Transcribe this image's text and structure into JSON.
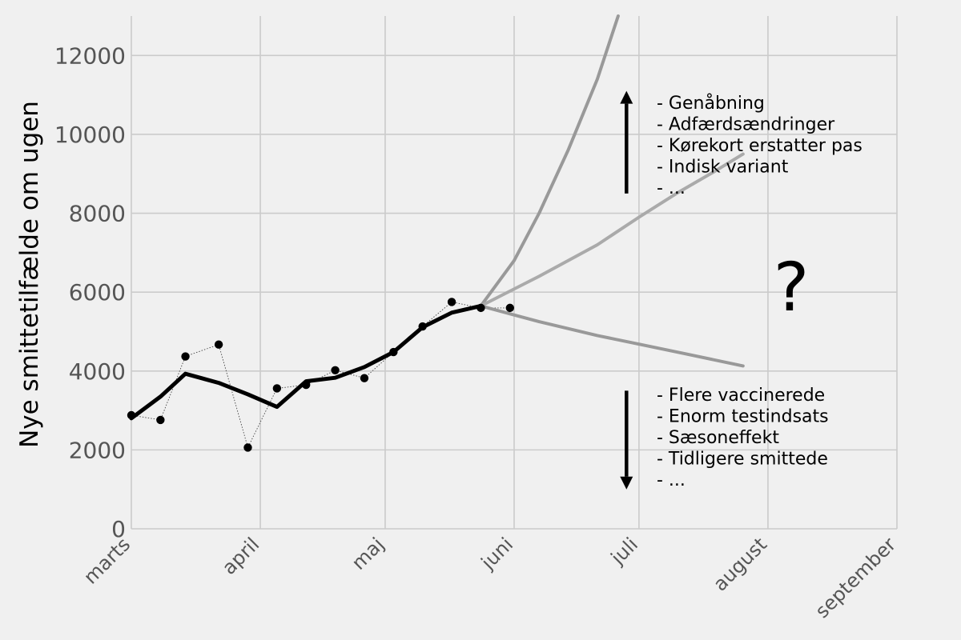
{
  "chart_data": {
    "type": "line",
    "title": "",
    "xlabel": "",
    "ylabel": "Nye smittetilfælde om ugen",
    "ylim": [
      0,
      13000
    ],
    "yticks": [
      0,
      2000,
      4000,
      6000,
      8000,
      10000,
      12000
    ],
    "x_unit": "date",
    "xlim": [
      "2021-03-01",
      "2021-09-01"
    ],
    "xticks": [
      {
        "date": "2021-03-01",
        "label": "marts"
      },
      {
        "date": "2021-04-01",
        "label": "april"
      },
      {
        "date": "2021-05-01",
        "label": "maj"
      },
      {
        "date": "2021-06-01",
        "label": "juni"
      },
      {
        "date": "2021-07-01",
        "label": "juli"
      },
      {
        "date": "2021-08-01",
        "label": "august"
      },
      {
        "date": "2021-09-01",
        "label": "september"
      }
    ],
    "grid": true,
    "series": [
      {
        "style": "points-dotted",
        "color": "#000000",
        "x": [
          "2021-03-01",
          "2021-03-08",
          "2021-03-14",
          "2021-03-22",
          "2021-03-29",
          "2021-04-05",
          "2021-04-12",
          "2021-04-19",
          "2021-04-26",
          "2021-05-03",
          "2021-05-10",
          "2021-05-17",
          "2021-05-24",
          "2021-05-31"
        ],
        "y": [
          2880,
          2760,
          4370,
          4670,
          2060,
          3560,
          3650,
          4020,
          3820,
          4480,
          5130,
          5750,
          5600,
          5600
        ]
      },
      {
        "style": "trend",
        "color": "#000000",
        "x": [
          "2021-03-01",
          "2021-03-08",
          "2021-03-14",
          "2021-03-22",
          "2021-03-29",
          "2021-04-05",
          "2021-04-12",
          "2021-04-19",
          "2021-04-26",
          "2021-05-03",
          "2021-05-10",
          "2021-05-17",
          "2021-05-24"
        ],
        "y": [
          2800,
          3350,
          3930,
          3700,
          3410,
          3090,
          3740,
          3830,
          4100,
          4480,
          5110,
          5480,
          5650
        ]
      },
      {
        "style": "scenario",
        "color": "#999999",
        "x": [
          "2021-05-24",
          "2021-06-01",
          "2021-06-07",
          "2021-06-14",
          "2021-06-21",
          "2021-06-26"
        ],
        "y": [
          5650,
          6800,
          8000,
          9600,
          11400,
          13000
        ]
      },
      {
        "style": "scenario",
        "color": "#aaaaaa",
        "x": [
          "2021-05-24",
          "2021-06-07",
          "2021-06-21",
          "2021-07-01",
          "2021-07-10",
          "2021-07-19",
          "2021-07-26"
        ],
        "y": [
          5650,
          6400,
          7200,
          7900,
          8500,
          9050,
          9500
        ]
      },
      {
        "style": "scenario",
        "color": "#999999",
        "x": [
          "2021-05-24",
          "2021-06-07",
          "2021-06-21",
          "2021-07-01",
          "2021-07-12",
          "2021-07-26"
        ],
        "y": [
          5650,
          5250,
          4900,
          4680,
          4440,
          4130
        ]
      }
    ],
    "arrows": [
      {
        "x": "2021-06-28",
        "from": 8500,
        "to": 11100
      },
      {
        "x": "2021-06-28",
        "from": 3500,
        "to": 1000
      }
    ],
    "annotations": {
      "up": [
        "- Genåbning",
        "- Adfærdsændringer",
        "- Kørekort erstatter pas",
        "- Indisk variant",
        "- ..."
      ],
      "down": [
        "- Flere vaccinerede",
        "- Enorm testindsats",
        "- Sæsoneffekt",
        "- Tidligere smittede",
        "- ..."
      ],
      "question": "?"
    }
  }
}
